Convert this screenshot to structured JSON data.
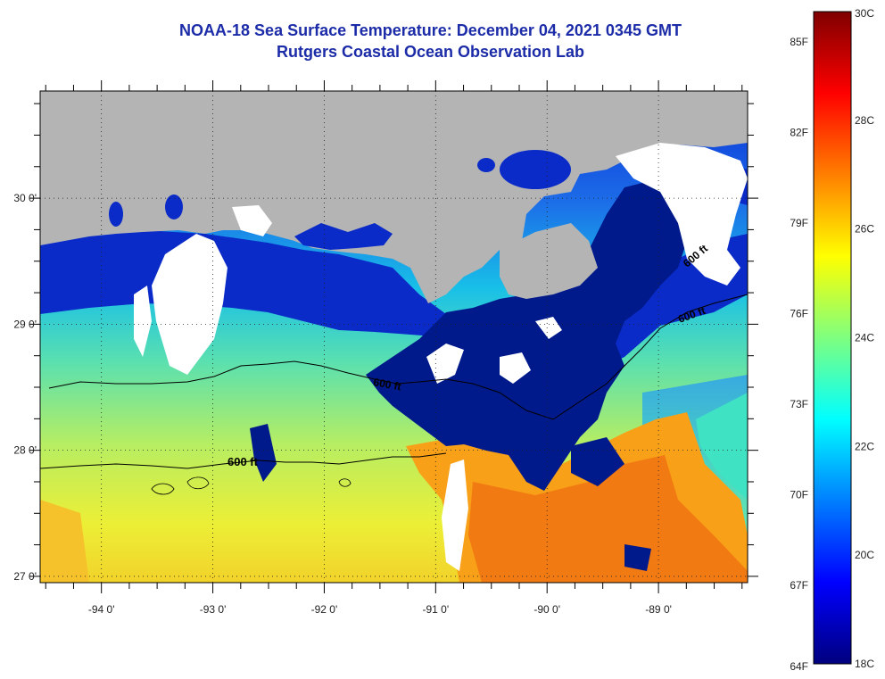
{
  "header": {
    "title": "NOAA-18 Sea Surface Temperature:  December 04, 2021 0345 GMT",
    "subtitle": "Rutgers Coastal Ocean Observation Lab"
  },
  "map": {
    "lon_range": [
      -94.55,
      -88.2
    ],
    "lat_range": [
      26.95,
      30.85
    ],
    "lat_ticks": [
      {
        "value": 30,
        "label": "30 0'"
      },
      {
        "value": 29,
        "label": "29 0'"
      },
      {
        "value": 28,
        "label": "28 0'"
      },
      {
        "value": 27,
        "label": "27 0'"
      }
    ],
    "lon_ticks": [
      {
        "value": -94,
        "label": "-94 0'"
      },
      {
        "value": -93,
        "label": "-93 0'"
      },
      {
        "value": -92,
        "label": "-92 0'"
      },
      {
        "value": -91,
        "label": "-91 0'"
      },
      {
        "value": -90,
        "label": "-90 0'"
      },
      {
        "value": -89,
        "label": "-89 0'"
      }
    ],
    "grid": "dotted",
    "colors": {
      "land": "#b4b4b4",
      "cloud": "#ffffff",
      "deep_blue": "#001a8c",
      "contour": "#000000"
    },
    "contours": [
      {
        "label": "600 ft"
      },
      {
        "label": "600 ft"
      },
      {
        "label": "600 ft"
      },
      {
        "label": "600 ft"
      }
    ]
  },
  "colorbar": {
    "min_c": 18,
    "max_c": 30,
    "celsius_labels": [
      "30C",
      "28C",
      "26C",
      "24C",
      "22C",
      "20C",
      "18C"
    ],
    "fahrenheit_labels": [
      "85F",
      "82F",
      "79F",
      "76F",
      "73F",
      "70F",
      "67F",
      "64F"
    ],
    "colors": [
      "#00007f",
      "#0000ff",
      "#007fff",
      "#00ffff",
      "#7fff7f",
      "#ffff00",
      "#ff7f00",
      "#ff0000",
      "#7f0000"
    ]
  }
}
